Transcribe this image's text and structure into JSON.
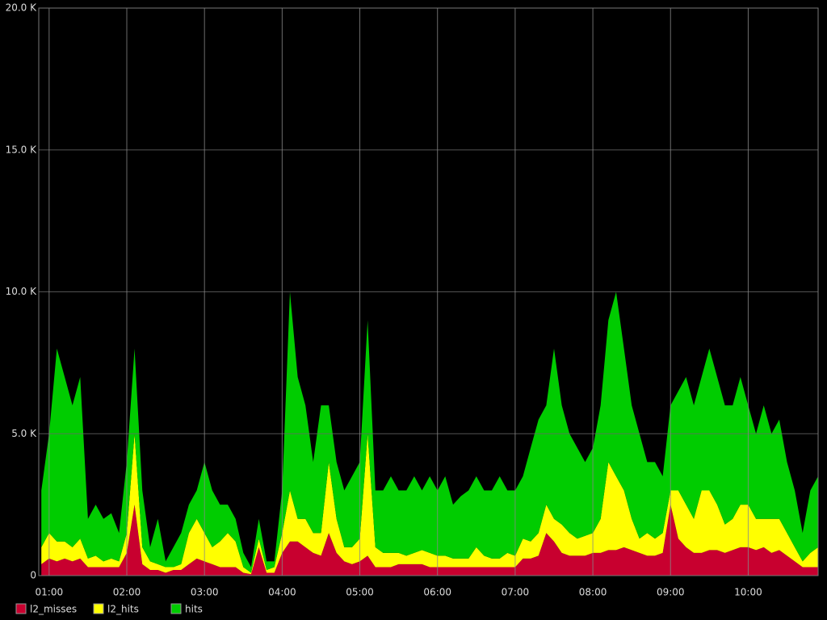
{
  "chart_data": {
    "type": "stacked_area",
    "x": [
      "00:54",
      "01:00",
      "01:06",
      "01:12",
      "01:18",
      "01:24",
      "01:30",
      "01:36",
      "01:42",
      "01:48",
      "01:54",
      "02:00",
      "02:06",
      "02:12",
      "02:18",
      "02:24",
      "02:30",
      "02:36",
      "02:42",
      "02:48",
      "02:54",
      "03:00",
      "03:06",
      "03:12",
      "03:18",
      "03:24",
      "03:30",
      "03:36",
      "03:42",
      "03:48",
      "03:54",
      "04:00",
      "04:06",
      "04:12",
      "04:18",
      "04:24",
      "04:30",
      "04:36",
      "04:42",
      "04:48",
      "04:54",
      "05:00",
      "05:06",
      "05:12",
      "05:18",
      "05:24",
      "05:30",
      "05:36",
      "05:42",
      "05:48",
      "05:54",
      "06:00",
      "06:06",
      "06:12",
      "06:18",
      "06:24",
      "06:30",
      "06:36",
      "06:42",
      "06:48",
      "06:54",
      "07:00",
      "07:06",
      "07:12",
      "07:18",
      "07:24",
      "07:30",
      "07:36",
      "07:42",
      "07:48",
      "07:54",
      "08:00",
      "08:06",
      "08:12",
      "08:18",
      "08:24",
      "08:30",
      "08:36",
      "08:42",
      "08:48",
      "08:54",
      "09:00",
      "09:06",
      "09:12",
      "09:18",
      "09:24",
      "09:30",
      "09:36",
      "09:42",
      "09:48",
      "09:54",
      "10:00",
      "10:06",
      "10:12",
      "10:18",
      "10:24",
      "10:30",
      "10:36",
      "10:42",
      "10:48",
      "10:54"
    ],
    "series": [
      {
        "name": "l2_misses",
        "color": "#c8002f",
        "values": [
          400,
          600,
          500,
          600,
          500,
          600,
          300,
          300,
          300,
          300,
          300,
          800,
          2500,
          400,
          200,
          200,
          100,
          200,
          200,
          400,
          600,
          500,
          400,
          300,
          300,
          300,
          100,
          50,
          1000,
          100,
          100,
          800,
          1200,
          1200,
          1000,
          800,
          700,
          1500,
          800,
          500,
          400,
          500,
          700,
          300,
          300,
          300,
          400,
          400,
          400,
          400,
          300,
          300,
          300,
          300,
          300,
          300,
          300,
          300,
          300,
          300,
          300,
          300,
          600,
          600,
          700,
          1500,
          1200,
          800,
          700,
          700,
          700,
          800,
          800,
          900,
          900,
          1000,
          900,
          800,
          700,
          700,
          800,
          2500,
          1300,
          1000,
          800,
          800,
          900,
          900,
          800,
          900,
          1000,
          1000,
          900,
          1000,
          800,
          900,
          700,
          500,
          300,
          300,
          300
        ]
      },
      {
        "name": "l2_hits",
        "color": "#ffff00",
        "values": [
          600,
          900,
          700,
          600,
          500,
          700,
          300,
          400,
          200,
          300,
          200,
          700,
          2500,
          600,
          300,
          200,
          200,
          100,
          200,
          1100,
          1400,
          1000,
          600,
          900,
          1200,
          900,
          200,
          50,
          300,
          100,
          200,
          700,
          1800,
          800,
          1000,
          700,
          800,
          2500,
          1200,
          500,
          600,
          800,
          4300,
          700,
          500,
          500,
          400,
          300,
          400,
          500,
          500,
          400,
          400,
          300,
          300,
          300,
          700,
          400,
          300,
          300,
          500,
          400,
          700,
          600,
          800,
          1000,
          800,
          1000,
          800,
          600,
          700,
          700,
          1200,
          3100,
          2600,
          2000,
          1100,
          500,
          800,
          600,
          700,
          500,
          1700,
          1500,
          1200,
          2200,
          2100,
          1600,
          1000,
          1100,
          1500,
          1500,
          1100,
          1000,
          1200,
          1100,
          800,
          500,
          200,
          500,
          700
        ]
      },
      {
        "name": "hits",
        "color": "#00cc00",
        "values": [
          2000,
          3500,
          6800,
          5800,
          5000,
          5700,
          1400,
          1800,
          1500,
          1600,
          1000,
          2500,
          3000,
          2000,
          500,
          1600,
          200,
          700,
          1100,
          1000,
          1000,
          2500,
          2000,
          1300,
          1000,
          800,
          500,
          200,
          700,
          300,
          200,
          1500,
          7000,
          5000,
          4000,
          2500,
          4500,
          2000,
          2000,
          2000,
          2500,
          2700,
          4000,
          2000,
          2200,
          2700,
          2200,
          2300,
          2700,
          2100,
          2700,
          2300,
          2800,
          1900,
          2200,
          2400,
          2500,
          2300,
          2400,
          2900,
          2200,
          2300,
          2200,
          3300,
          4000,
          3500,
          6000,
          4200,
          3500,
          3200,
          2600,
          3000,
          4000,
          5000,
          6500,
          5000,
          4000,
          3700,
          2500,
          2700,
          2000,
          3000,
          3500,
          4500,
          4000,
          4000,
          5000,
          4500,
          4200,
          4000,
          4500,
          3500,
          3000,
          4000,
          3000,
          3500,
          2500,
          2000,
          1000,
          2200,
          2500
        ]
      }
    ],
    "xlim": [
      "00:52",
      "10:54"
    ],
    "xticks": [
      "01:00",
      "02:00",
      "03:00",
      "04:00",
      "05:00",
      "06:00",
      "07:00",
      "08:00",
      "09:00",
      "10:00"
    ],
    "ylim": [
      0,
      20000
    ],
    "yticks": [
      0,
      {
        "value": 5000,
        "label": "5.0 K"
      },
      {
        "value": 10000,
        "label": "10.0 K"
      },
      {
        "value": 15000,
        "label": "15.0 K"
      },
      {
        "value": 20000,
        "label": "20.0 K"
      }
    ],
    "grid": true,
    "legend": "bottom-left"
  }
}
